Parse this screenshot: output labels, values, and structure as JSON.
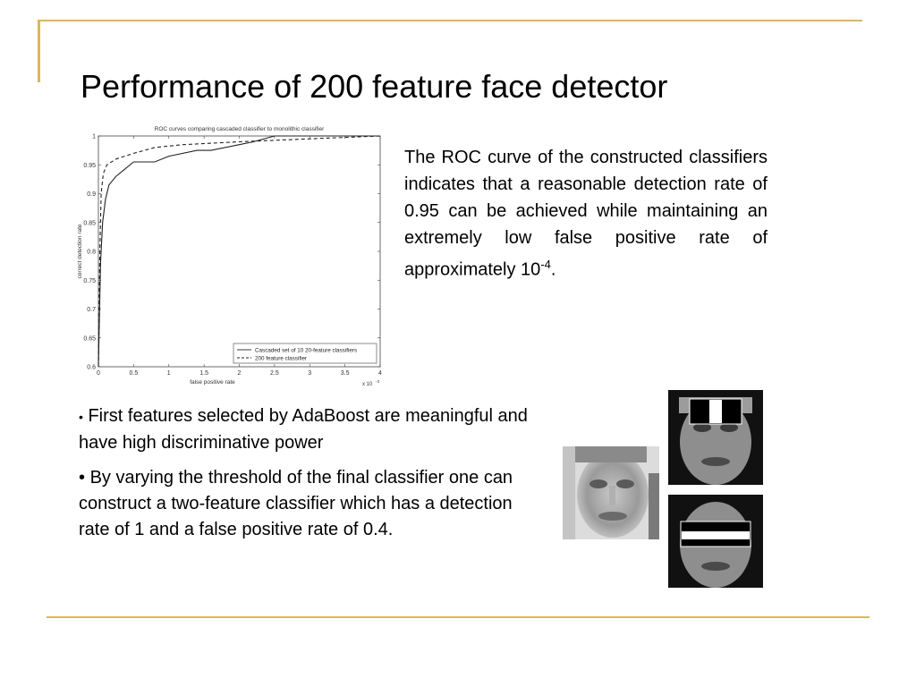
{
  "slide": {
    "title": "Performance of 200 feature face detector",
    "paragraph": {
      "text_before": "The ROC curve of the constructed classifiers indicates that a reasonable detection rate of 0.95 can be achieved while maintaining an extremely low false positive rate of approximately  10",
      "exponent": "-4",
      "text_after": "."
    },
    "bullets": [
      {
        "marker": "•",
        "text": "First features selected by AdaBoost are meaningful and have high discriminative power"
      },
      {
        "marker": "•",
        "text": "By varying the threshold of the final classifier one can construct a two-feature classifier which has a detection rate of 1 and a false positive rate of 0.4."
      }
    ],
    "colors": {
      "accent_line": "#d9b75a"
    }
  },
  "chart_data": {
    "type": "line",
    "title": "ROC curves comparing cascaded classifier to monolithic classifier",
    "xlabel": "false positive rate",
    "ylabel": "correct detection rate",
    "x_multiplier_label": "x 10",
    "x_multiplier_exp": "-3",
    "xlim": [
      0,
      4
    ],
    "ylim": [
      0.6,
      1
    ],
    "xticks": [
      "0",
      "0.5",
      "1",
      "1.5",
      "2",
      "2.5",
      "3",
      "3.5",
      "4"
    ],
    "yticks": [
      "0.6",
      "0.65",
      "0.7",
      "0.75",
      "0.8",
      "0.85",
      "0.9",
      "0.95",
      "1"
    ],
    "legend_position": "bottom-right",
    "series": [
      {
        "name": "Cascaded set of 10 20-feature classifiers",
        "style": "solid",
        "x": [
          0,
          0.03,
          0.06,
          0.1,
          0.15,
          0.25,
          0.35,
          0.5,
          0.8,
          1.0,
          1.4,
          1.6,
          2.0,
          2.2,
          2.5,
          4.0
        ],
        "y": [
          0.6,
          0.78,
          0.85,
          0.89,
          0.915,
          0.93,
          0.94,
          0.955,
          0.955,
          0.965,
          0.975,
          0.975,
          0.985,
          0.99,
          1.0,
          1.0
        ]
      },
      {
        "name": "200 feature classifier",
        "style": "dashed",
        "x": [
          0,
          0.02,
          0.04,
          0.07,
          0.12,
          0.25,
          0.5,
          0.8,
          1.2,
          2.0,
          3.0,
          4.0
        ],
        "y": [
          0.6,
          0.8,
          0.9,
          0.935,
          0.95,
          0.96,
          0.97,
          0.98,
          0.985,
          0.99,
          0.995,
          1.0
        ]
      }
    ]
  }
}
